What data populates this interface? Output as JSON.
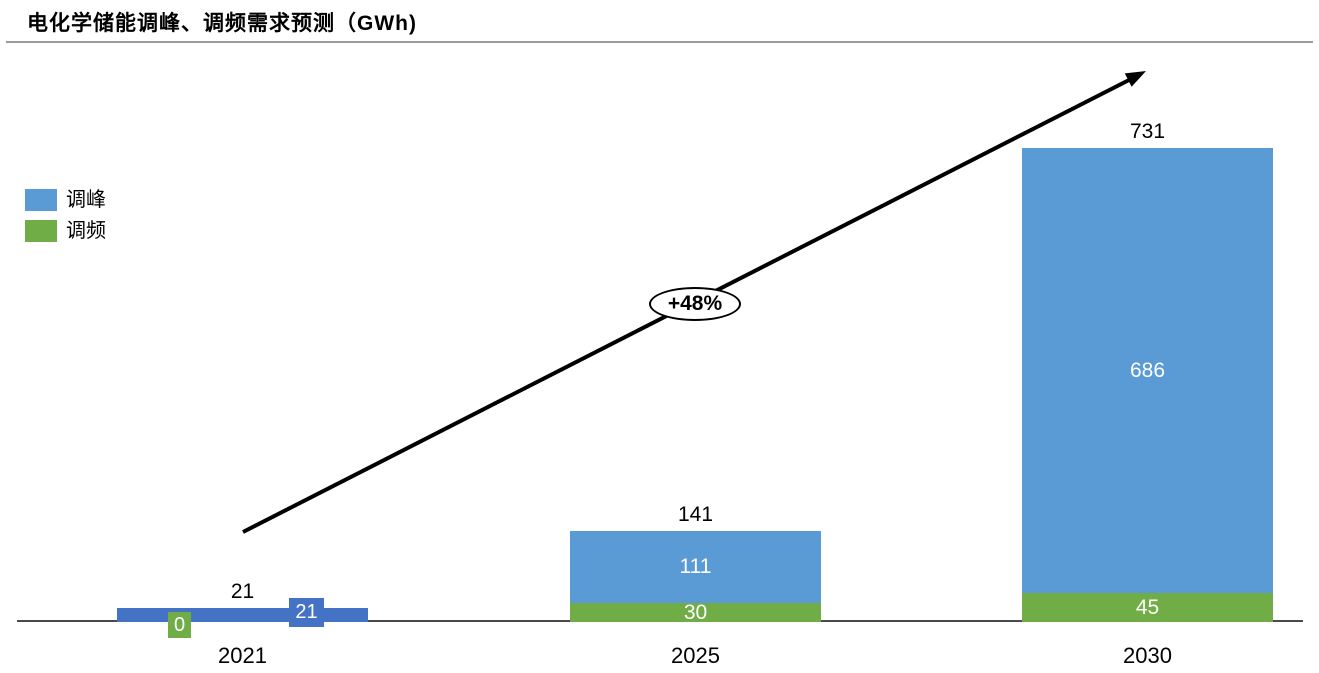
{
  "title": "电化学储能调峰、调频需求预测（GWh)",
  "legend": [
    {
      "label": "调峰",
      "color": "#5B9BD5"
    },
    {
      "label": "调频",
      "color": "#70AD47"
    }
  ],
  "colors": {
    "peak_blue": "#5B9BD5",
    "freq_green": "#70AD47",
    "peak_2021_blue": "#4472C4",
    "axis_line": "#4a4a4a",
    "title_rule": "#9b9b9b",
    "arrow": "#000000"
  },
  "chart_data": {
    "type": "bar",
    "stacked": true,
    "title": "电化学储能调峰、调频需求预测（GWh)",
    "categories": [
      "2021",
      "2025",
      "2030"
    ],
    "series": [
      {
        "name": "调峰",
        "color": "#5B9BD5",
        "values": [
          21,
          111,
          686
        ]
      },
      {
        "name": "调频",
        "color": "#70AD47",
        "values": [
          0,
          30,
          45
        ]
      }
    ],
    "totals": [
      21,
      141,
      731
    ],
    "annotations": [
      {
        "text": "+48%",
        "type": "growth-arrow-ellipse"
      }
    ],
    "ylim": [
      0,
      760
    ],
    "xlabel": "",
    "ylabel": "GWh",
    "grid": false,
    "legend_position": "upper-left"
  }
}
